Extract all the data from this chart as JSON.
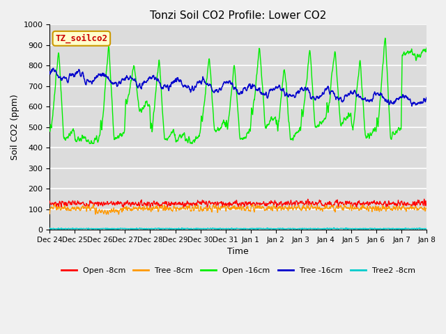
{
  "title": "Tonzi Soil CO2 Profile: Lower CO2",
  "xlabel": "Time",
  "ylabel": "Soil CO2 (ppm)",
  "ylim": [
    0,
    1000
  ],
  "legend_label": "TZ_soilco2",
  "legend_box_color": "#ffffcc",
  "legend_box_edge": "#cc9900",
  "legend_text_color": "#cc0000",
  "bg_color": "#dcdcdc",
  "grid_color": "#ffffff",
  "series": {
    "open_8cm": {
      "color": "#ff0000",
      "label": "Open -8cm"
    },
    "tree_8cm": {
      "color": "#ff9900",
      "label": "Tree -8cm"
    },
    "open_16cm": {
      "color": "#00ee00",
      "label": "Open -16cm"
    },
    "tree_16cm": {
      "color": "#0000cc",
      "label": "Tree -16cm"
    },
    "tree2_8cm": {
      "color": "#00cccc",
      "label": "Tree2 -8cm"
    }
  },
  "tick_labels": [
    "Dec 24",
    "Dec 25",
    "Dec 26",
    "Dec 27",
    "Dec 28",
    "Dec 29",
    "Dec 30",
    "Dec 31",
    "Jan 1",
    "Jan 2",
    "Jan 3",
    "Jan 4",
    "Jan 5",
    "Jan 6",
    "Jan 7",
    "Jan 8"
  ],
  "tick_positions": [
    0,
    1,
    2,
    3,
    4,
    5,
    6,
    7,
    8,
    9,
    10,
    11,
    12,
    13,
    14,
    15
  ],
  "yticks": [
    0,
    100,
    200,
    300,
    400,
    500,
    600,
    700,
    800,
    900,
    1000
  ]
}
